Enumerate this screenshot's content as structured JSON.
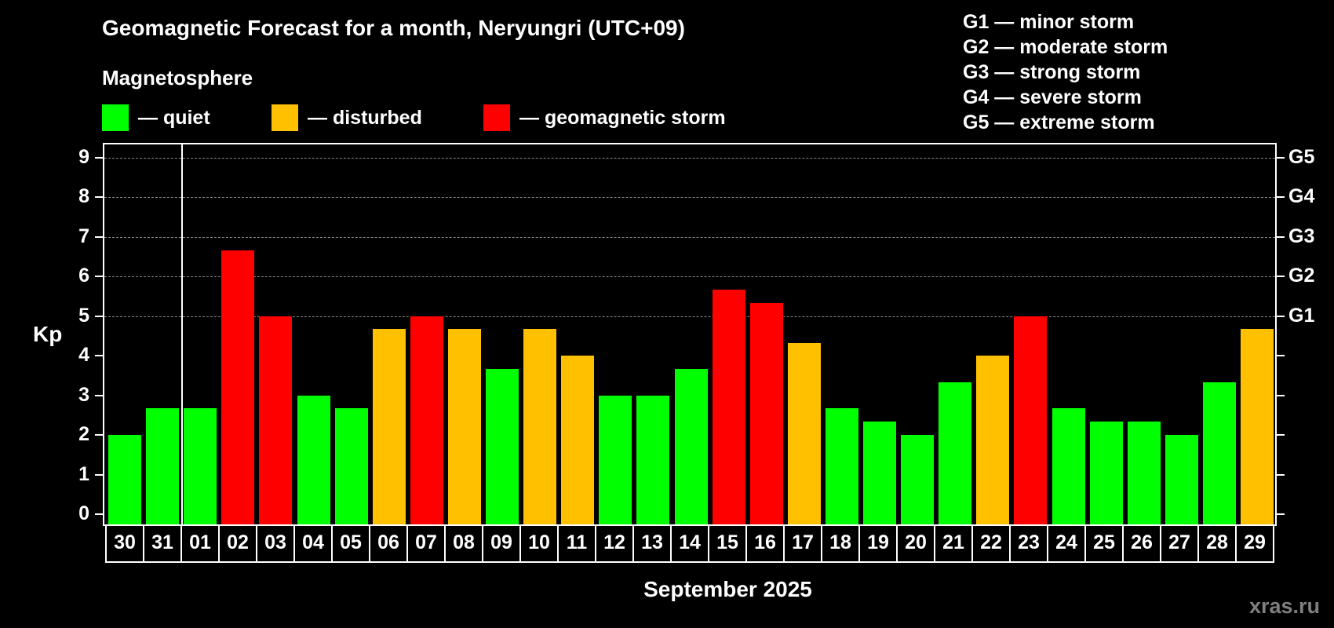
{
  "header": {
    "title": "Geomagnetic Forecast for a month, Neryungri (UTC+09)",
    "subtitle": "Magnetosphere"
  },
  "legend": [
    {
      "label": "— quiet",
      "color": "#00ff00"
    },
    {
      "label": "— disturbed",
      "color": "#ffc000"
    },
    {
      "label": "— geomagnetic storm",
      "color": "#ff0000"
    }
  ],
  "g_scale": [
    "G1 — minor storm",
    "G2 — moderate storm",
    "G3 — strong storm",
    "G4 — severe storm",
    "G5 — extreme storm"
  ],
  "axis": {
    "ylabel": "Kp",
    "yticks": [
      "0",
      "1",
      "2",
      "3",
      "4",
      "5",
      "6",
      "7",
      "8",
      "9"
    ],
    "right_labels": {
      "5": "G1",
      "6": "G2",
      "7": "G3",
      "8": "G4",
      "9": "G5"
    },
    "xlabel": "September 2025"
  },
  "watermark": "xras.ru",
  "colors": {
    "quiet": "#00ff00",
    "disturbed": "#ffc000",
    "storm": "#ff0000",
    "background": "#000000",
    "grid": "#888888"
  },
  "chart_data": {
    "type": "bar",
    "title": "Geomagnetic Forecast for a month, Neryungri (UTC+09)",
    "xlabel": "September 2025",
    "ylabel": "Kp",
    "ylim": [
      0,
      9
    ],
    "grid": "horizontal dashed at 5,6,7,8,9",
    "legend": [
      "quiet",
      "disturbed",
      "geomagnetic storm"
    ],
    "categories": [
      "30",
      "31",
      "01",
      "02",
      "03",
      "04",
      "05",
      "06",
      "07",
      "08",
      "09",
      "10",
      "11",
      "12",
      "13",
      "14",
      "15",
      "16",
      "17",
      "18",
      "19",
      "20",
      "21",
      "22",
      "23",
      "24",
      "25",
      "26",
      "27",
      "28",
      "29"
    ],
    "values": [
      2.0,
      2.67,
      2.67,
      6.67,
      5.0,
      3.0,
      2.67,
      4.67,
      5.0,
      4.67,
      3.67,
      4.67,
      4.0,
      3.0,
      3.0,
      3.67,
      5.67,
      5.33,
      4.33,
      2.67,
      2.33,
      2.0,
      3.33,
      4.0,
      5.0,
      2.67,
      2.33,
      2.33,
      2.0,
      3.33,
      4.67
    ],
    "status": [
      "quiet",
      "quiet",
      "quiet",
      "storm",
      "storm",
      "quiet",
      "quiet",
      "disturbed",
      "storm",
      "disturbed",
      "quiet",
      "disturbed",
      "disturbed",
      "quiet",
      "quiet",
      "quiet",
      "storm",
      "storm",
      "disturbed",
      "quiet",
      "quiet",
      "quiet",
      "quiet",
      "disturbed",
      "storm",
      "quiet",
      "quiet",
      "quiet",
      "quiet",
      "quiet",
      "disturbed"
    ],
    "right_axis": {
      "5": "G1",
      "6": "G2",
      "7": "G3",
      "8": "G4",
      "9": "G5"
    }
  }
}
